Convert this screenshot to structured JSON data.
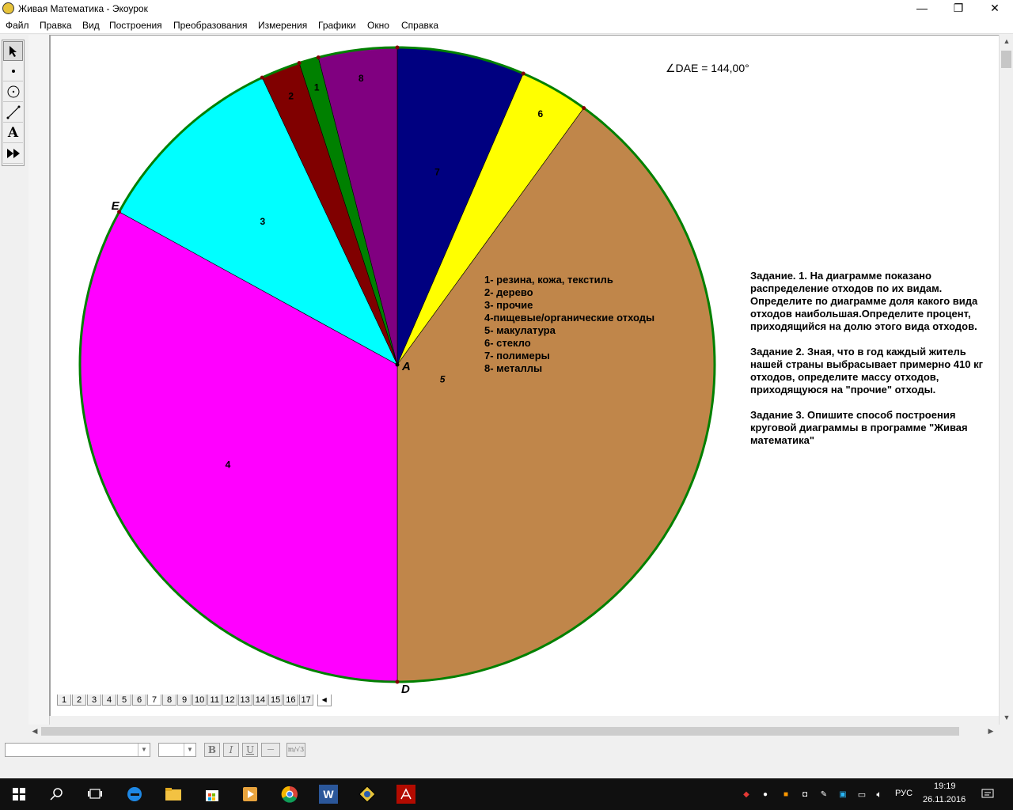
{
  "window": {
    "title": "Живая Математика - Экоурок",
    "controls": [
      "—",
      "❐",
      "✕"
    ]
  },
  "menu": [
    "Файл",
    "Правка",
    "Вид",
    "Построения",
    "Преобразования",
    "Измерения",
    "Графики",
    "Окно",
    "Справка"
  ],
  "toolbox": {
    "tools": [
      "arrow-tool",
      "point-tool",
      "compass-tool",
      "straightedge-tool",
      "text-tool",
      "custom-tool"
    ],
    "text_tool_glyph": "A"
  },
  "measurement": "∠DAE = 144,00°",
  "point_labels": {
    "a": "A",
    "d": "D",
    "e": "E"
  },
  "chart_data": {
    "type": "pie",
    "title": "",
    "start_angle_deg": 0,
    "direction": "clockwise",
    "slices": [
      {
        "label": "7",
        "value": 6.5,
        "color": "#000080"
      },
      {
        "label": "6",
        "value": 3.5,
        "color": "#ffff00"
      },
      {
        "label": "5",
        "value": 40,
        "color": "#c0864a"
      },
      {
        "label": "4",
        "value": 33,
        "color": "#ff00ff"
      },
      {
        "label": "3",
        "value": 10,
        "color": "#00ffff"
      },
      {
        "label": "2",
        "value": 2,
        "color": "#800000"
      },
      {
        "label": "1",
        "value": 1,
        "color": "#008000"
      },
      {
        "label": "8",
        "value": 4,
        "color": "#800080"
      }
    ],
    "outline_color": "#008000"
  },
  "legend": [
    "1- резина, кожа, текстиль",
    "2- дерево",
    "3- прочие",
    "4-пищевые/органические отходы",
    "5- макулатура",
    "6- стекло",
    "7- полимеры",
    "8- металлы"
  ],
  "tasks": [
    "Задание. 1. На диаграмме показано распределение отходов по их видам. Определите по диаграмме доля какого вида отходов наибольшая.Определите процент, приходящийся на долю этого вида отходов.",
    "Задание 2. Зная, что в год каждый житель нашей страны выбрасывает примерно 410 кг отходов, определите массу отходов, приходящуюся на \"прочие\" отходы.",
    "Задание 3. Опишите способ построения круговой диаграммы в программе \"Живая математика\""
  ],
  "page_tabs": [
    "1",
    "2",
    "3",
    "4",
    "5",
    "6",
    "7",
    "8",
    "9",
    "10",
    "11",
    "12",
    "13",
    "14",
    "15",
    "16",
    "17"
  ],
  "active_page": "7",
  "format_bar": {
    "bold": "B",
    "italic": "I",
    "underline": "U",
    "extra": "—",
    "math": "m/√3"
  },
  "taskbar": {
    "language": "РУС",
    "time": "19:19",
    "date": "26.11.2016"
  }
}
